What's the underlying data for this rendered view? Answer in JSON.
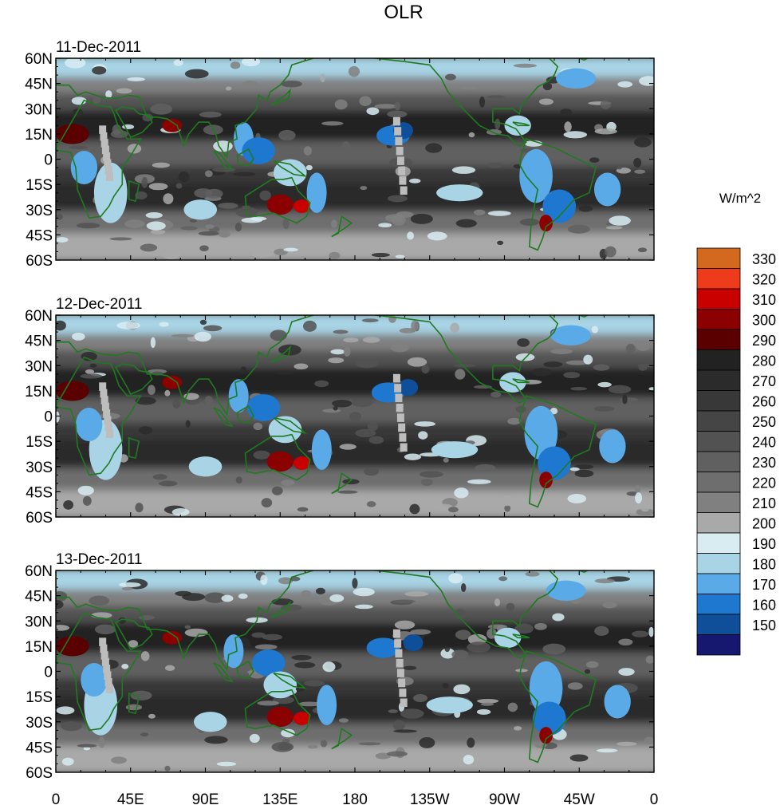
{
  "chart_data": {
    "type": "heatmap",
    "title": "OLR",
    "units_label": "W/m^2",
    "panels": [
      {
        "date": "11-Dec-2011"
      },
      {
        "date": "12-Dec-2011"
      },
      {
        "date": "13-Dec-2011"
      }
    ],
    "lat_range": [
      -60,
      60
    ],
    "lon_range": [
      0,
      360
    ],
    "lat_ticks": [
      {
        "value": 60,
        "label": "60N"
      },
      {
        "value": 45,
        "label": "45N"
      },
      {
        "value": 30,
        "label": "30N"
      },
      {
        "value": 15,
        "label": "15N"
      },
      {
        "value": 0,
        "label": "0"
      },
      {
        "value": -15,
        "label": "15S"
      },
      {
        "value": -30,
        "label": "30S"
      },
      {
        "value": -45,
        "label": "45S"
      },
      {
        "value": -60,
        "label": "60S"
      }
    ],
    "lon_ticks": [
      {
        "value": 0,
        "label": "0"
      },
      {
        "value": 45,
        "label": "45E"
      },
      {
        "value": 90,
        "label": "90E"
      },
      {
        "value": 135,
        "label": "135E"
      },
      {
        "value": 180,
        "label": "180"
      },
      {
        "value": 225,
        "label": "135W"
      },
      {
        "value": 270,
        "label": "90W"
      },
      {
        "value": 315,
        "label": "45W"
      },
      {
        "value": 360,
        "label": "0"
      }
    ],
    "colorbar": {
      "levels": [
        "330",
        "320",
        "310",
        "300",
        "290",
        "280",
        "270",
        "260",
        "250",
        "240",
        "230",
        "220",
        "210",
        "200",
        "190",
        "180",
        "170",
        "160",
        "150"
      ],
      "colors": [
        "#d2691e",
        "#ee3b1c",
        "#c80000",
        "#8b0000",
        "#5a0000",
        "#222222",
        "#2b2b2b",
        "#383838",
        "#454545",
        "#525252",
        "#606060",
        "#6e6e6e",
        "#808080",
        "#a9a9a9",
        "#d8ecf2",
        "#a8d4e6",
        "#5aaae8",
        "#1e78d0",
        "#0f4f9a",
        "#15186e"
      ]
    }
  }
}
